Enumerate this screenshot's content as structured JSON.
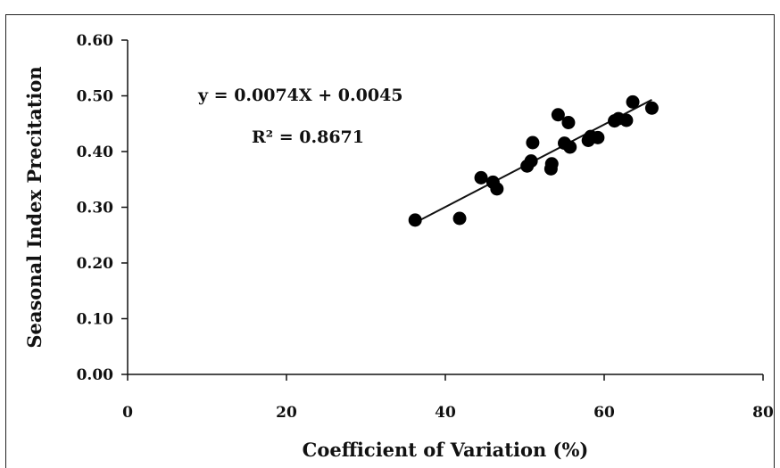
{
  "chart_data": {
    "type": "scatter",
    "xlabel": "Coefficient of Variation (%)",
    "ylabel": "Seasonal Index Precitation",
    "xlim": [
      0,
      80
    ],
    "ylim": [
      0.0,
      0.6
    ],
    "x_ticks": [
      "0",
      "20",
      "40",
      "60",
      "80"
    ],
    "y_ticks": [
      "0.00",
      "0.10",
      "0.20",
      "0.30",
      "0.40",
      "0.50",
      "0.60"
    ],
    "grid": false,
    "series": [
      {
        "points": [
          {
            "x": 36.2,
            "y": 0.277
          },
          {
            "x": 41.8,
            "y": 0.28
          },
          {
            "x": 44.5,
            "y": 0.353
          },
          {
            "x": 46.0,
            "y": 0.345
          },
          {
            "x": 46.5,
            "y": 0.333
          },
          {
            "x": 50.3,
            "y": 0.374
          },
          {
            "x": 50.8,
            "y": 0.383
          },
          {
            "x": 51.0,
            "y": 0.416
          },
          {
            "x": 53.3,
            "y": 0.369
          },
          {
            "x": 53.4,
            "y": 0.378
          },
          {
            "x": 54.2,
            "y": 0.466
          },
          {
            "x": 55.0,
            "y": 0.415
          },
          {
            "x": 55.5,
            "y": 0.452
          },
          {
            "x": 55.7,
            "y": 0.408
          },
          {
            "x": 58.0,
            "y": 0.42
          },
          {
            "x": 58.3,
            "y": 0.427
          },
          {
            "x": 59.2,
            "y": 0.425
          },
          {
            "x": 61.3,
            "y": 0.455
          },
          {
            "x": 61.8,
            "y": 0.459
          },
          {
            "x": 62.8,
            "y": 0.456
          },
          {
            "x": 63.6,
            "y": 0.489
          },
          {
            "x": 66.0,
            "y": 0.478
          }
        ]
      }
    ],
    "trendline": {
      "slope": 0.0074,
      "intercept": 0.0045,
      "x_range": [
        36.2,
        66.0
      ]
    },
    "annotations": {
      "equation": "y = 0.0074X + 0.0045",
      "r2_label": "R²",
      "r2_value": " = 0.8671"
    }
  }
}
